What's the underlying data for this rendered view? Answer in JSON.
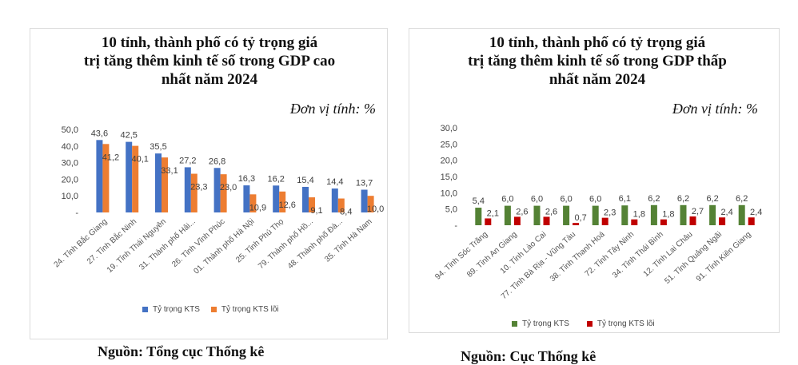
{
  "chart_data": [
    {
      "type": "bar",
      "title": "10 tỉnh, thành phố có tỷ trọng giá trị tăng thêm kinh tế số trong GDP cao nhất năm 2024",
      "title_lines": [
        "10 tỉnh, thành phố có tỷ trọng giá",
        "trị tăng thêm kinh tế số trong GDP cao",
        "nhất năm 2024"
      ],
      "unit": "Đơn vị tính: %",
      "ylim": [
        0,
        50
      ],
      "yticks": [
        "-",
        "10,0",
        "20,0",
        "30,0",
        "40,0",
        "50,0"
      ],
      "categories": [
        "24. Tỉnh Bắc Giang",
        "27. Tỉnh Bắc Ninh",
        "19. Tỉnh Thái Nguyên",
        "31. Thành phố Hải...",
        "26. Tỉnh Vĩnh Phúc",
        "01. Thành phố Hà Nội",
        "25. Tỉnh Phú Thọ",
        "79. Thành phố Hồ...",
        "48. Thành phố Đà...",
        "35. Tỉnh Hà Nam"
      ],
      "series": [
        {
          "name": "Tỷ trọng KTS",
          "color": "#4472c4",
          "values": [
            43.6,
            42.5,
            35.5,
            27.2,
            26.8,
            16.3,
            16.2,
            15.4,
            14.4,
            13.7
          ],
          "labels": [
            "43,6",
            "42,5",
            "35,5",
            "27,2",
            "26,8",
            "16,3",
            "16,2",
            "15,4",
            "14,4",
            "13,7"
          ]
        },
        {
          "name": "Tỷ trọng KTS lõi",
          "color": "#ed7d31",
          "values": [
            41.2,
            40.1,
            33.1,
            23.3,
            23.0,
            10.9,
            12.6,
            9.1,
            8.4,
            10.0
          ],
          "labels": [
            "41,2",
            "40,1",
            "33,1",
            "23,3",
            "23,0",
            "10,9",
            "12,6",
            "9,1",
            "8,4",
            "10,0"
          ]
        }
      ],
      "legend_position": "bottom"
    },
    {
      "type": "bar",
      "title": "10 tỉnh, thành phố có tỷ trọng giá trị tăng thêm kinh tế số trong GDP thấp nhất năm 2024",
      "title_lines": [
        "10 tỉnh, thành phố có tỷ trọng giá",
        "trị tăng thêm kinh tế số trong GDP thấp",
        "nhất năm 2024"
      ],
      "unit": "Đơn vị tính: %",
      "ylim": [
        0,
        30
      ],
      "yticks": [
        "-",
        "5,0",
        "10,0",
        "15,0",
        "20,0",
        "25,0",
        "30,0"
      ],
      "categories": [
        "94. Tỉnh Sóc Trăng",
        "89. Tỉnh An Giang",
        "10. Tỉnh Lào Cai",
        "77. Tỉnh Bà Rịa - Vũng Tàu",
        "38. Tỉnh Thanh Hoá",
        "72. Tỉnh Tây Ninh",
        "34. Tỉnh Thái Bình",
        "12. Tỉnh Lai Châu",
        "51. Tỉnh Quảng Ngãi",
        "91. Tỉnh Kiên Giang"
      ],
      "series": [
        {
          "name": "Tỷ trọng KTS",
          "color": "#548235",
          "values": [
            5.4,
            6.0,
            6.0,
            6.0,
            6.0,
            6.1,
            6.2,
            6.2,
            6.2,
            6.2
          ],
          "labels": [
            "5,4",
            "6,0",
            "6,0",
            "6,0",
            "6,0",
            "6,1",
            "6,2",
            "6,2",
            "6,2",
            "6,2"
          ]
        },
        {
          "name": "Tỷ trọng KTS lõi",
          "color": "#c00000",
          "values": [
            2.1,
            2.6,
            2.6,
            0.7,
            2.3,
            1.8,
            1.8,
            2.7,
            2.4,
            2.4
          ],
          "labels": [
            "2,1",
            "2,6",
            "2,6",
            "0,7",
            "2,3",
            "1,8",
            "1,8",
            "2,7",
            "2,4",
            "2,4"
          ]
        }
      ],
      "legend_position": "bottom"
    }
  ],
  "footer": {
    "source_left": "Nguồn: Tổng cục Thống kê",
    "source_right": "Nguồn: Cục Thống kê"
  }
}
